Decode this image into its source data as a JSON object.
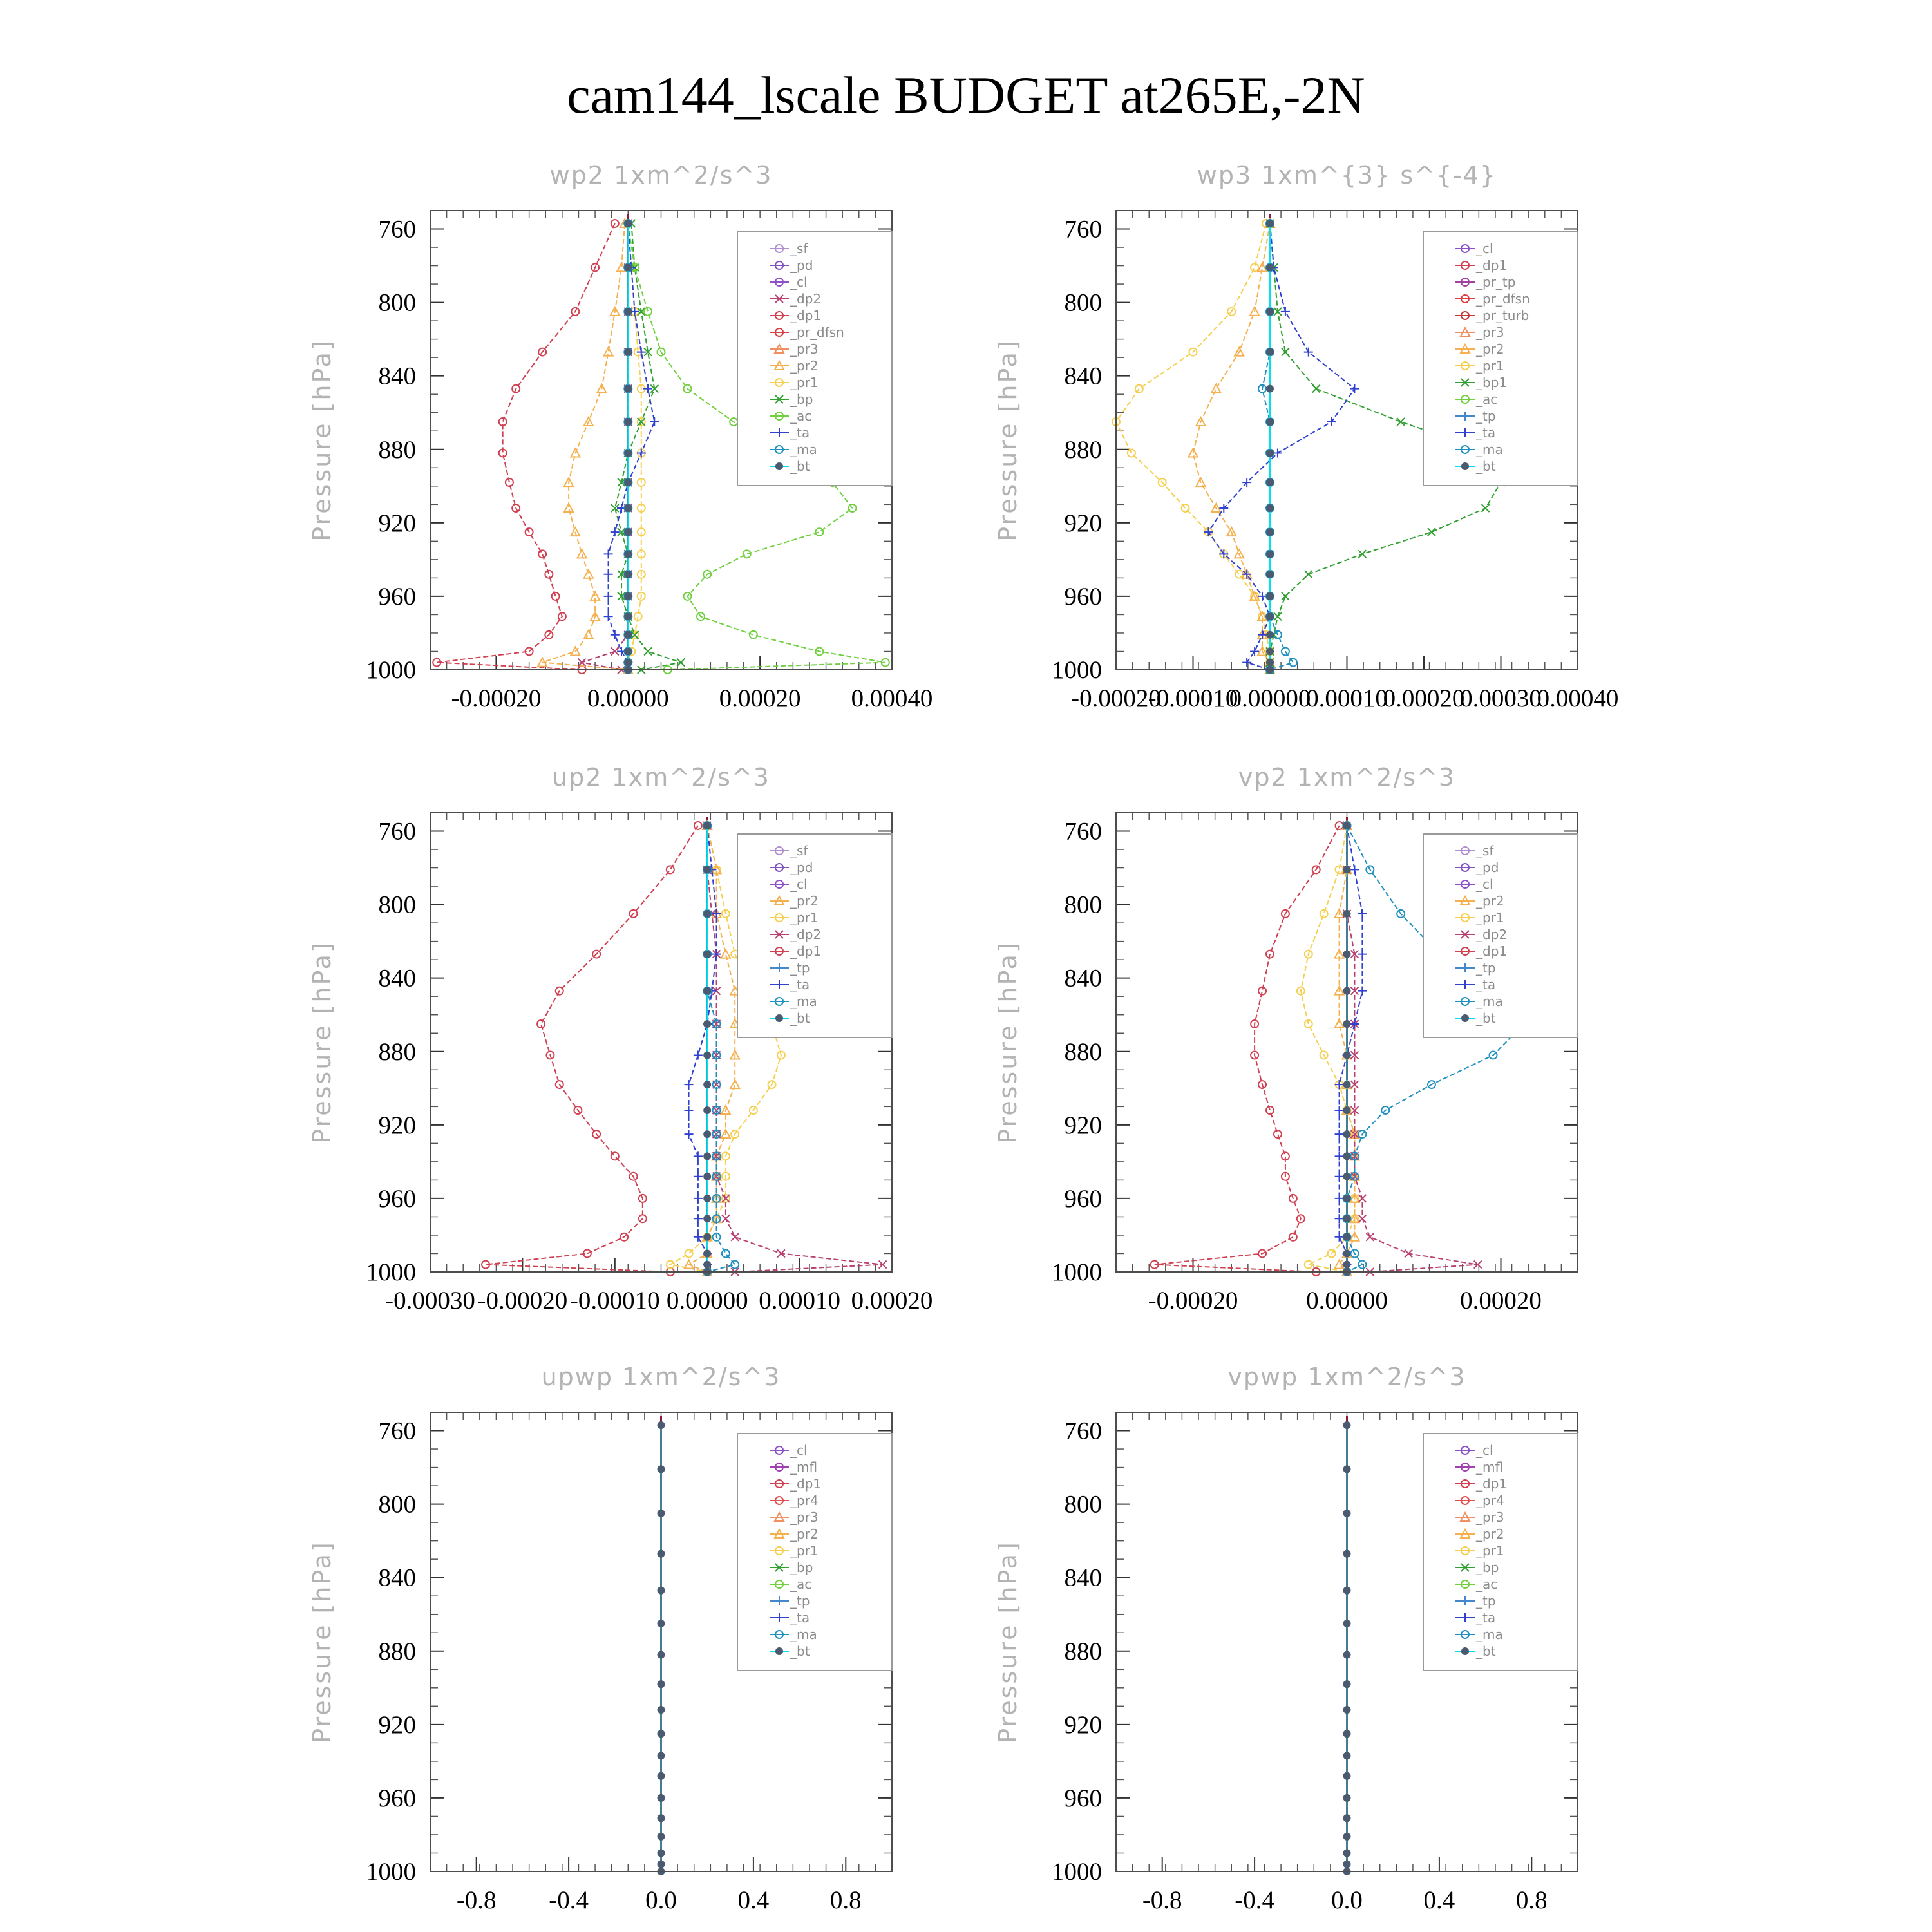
{
  "title": "cam144_lscale  BUDGET at265E,-2N",
  "colors": {
    "_sf": "#b08fd0",
    "_pd": "#8050c0",
    "_cl": "#8c50c8",
    "_mfl": "#a040b0",
    "_dp2": "#b84070",
    "_dp1": "#d04050",
    "_pr_tp": "#a040a0",
    "_pr_dfsn": "#d84040",
    "_pr_turb": "#c03838",
    "_pr4": "#e05050",
    "_pr3": "#f09060",
    "_pr2": "#f5b050",
    "_pr1": "#f5d050",
    "_bp": "#30a030",
    "_bp1": "#30a030",
    "_ac": "#70d040",
    "_tp": "#4488cc",
    "_ta": "#3040d0",
    "_ma": "#2090c0",
    "_bt": "#00e0f0"
  },
  "chart_data": [
    {
      "type": "line",
      "title": "wp2  1xm^2/s^3",
      "ylabel": "Pressure [hPa]",
      "ylim": [
        1000,
        750
      ],
      "xlim": [
        -0.0003,
        0.0004
      ],
      "yticks": [
        "760",
        "800",
        "840",
        "880",
        "920",
        "960",
        "1000"
      ],
      "xticks": [
        "-0.00020",
        "0.00000",
        "0.00020",
        "0.00040"
      ],
      "legend": [
        "_sf",
        "_pd",
        "_cl",
        "_dp2",
        "_dp1",
        "_pr_dfsn",
        "_pr3",
        "_pr2",
        "_pr1",
        "_bp",
        "_ac",
        "_ta",
        "_ma",
        "_bt"
      ],
      "y": [
        757,
        781,
        805,
        827,
        847,
        865,
        882,
        898,
        912,
        925,
        937,
        948,
        960,
        971,
        981,
        990,
        996,
        1000
      ],
      "series": [
        {
          "name": "_dp1",
          "values": [
            -2e-05,
            -5e-05,
            -8e-05,
            -0.00013,
            -0.00017,
            -0.00019,
            -0.00019,
            -0.00018,
            -0.00017,
            -0.00015,
            -0.00013,
            -0.00012,
            -0.00011,
            -0.0001,
            -0.00012,
            -0.00015,
            -0.00029,
            -7e-05
          ]
        },
        {
          "name": "_dp2",
          "values": [
            0,
            0,
            0,
            0,
            0,
            0,
            0,
            0,
            0,
            0,
            0,
            0,
            0,
            0,
            0,
            -2e-05,
            -7e-05,
            -1e-05
          ]
        },
        {
          "name": "_pr2",
          "values": [
            -5e-06,
            -1e-05,
            -2e-05,
            -3e-05,
            -4e-05,
            -6e-05,
            -8e-05,
            -9e-05,
            -9e-05,
            -8e-05,
            -7e-05,
            -6e-05,
            -5e-05,
            -5e-05,
            -6e-05,
            -8e-05,
            -0.00013,
            0
          ]
        },
        {
          "name": "_pr1",
          "values": [
            0,
            5e-06,
            1e-05,
            1.5e-05,
            2e-05,
            2e-05,
            2e-05,
            2e-05,
            2e-05,
            2e-05,
            2e-05,
            2e-05,
            2e-05,
            1.5e-05,
            1e-05,
            5e-06,
            0,
            0
          ]
        },
        {
          "name": "_bp",
          "values": [
            5e-06,
            1e-05,
            2e-05,
            3e-05,
            4e-05,
            2e-05,
            0,
            -1e-05,
            -2e-05,
            -1e-05,
            0,
            -1e-05,
            -1e-05,
            0,
            1e-05,
            3e-05,
            8e-05,
            2e-05
          ]
        },
        {
          "name": "_ac",
          "values": [
            0,
            1e-05,
            3e-05,
            5e-05,
            9e-05,
            0.00016,
            0.00024,
            0.00031,
            0.00034,
            0.00029,
            0.00018,
            0.00012,
            9e-05,
            0.00011,
            0.00019,
            0.00029,
            0.00039,
            6e-05
          ]
        },
        {
          "name": "_ta",
          "values": [
            0,
            5e-06,
            1e-05,
            2e-05,
            3e-05,
            4e-05,
            2e-05,
            0,
            -1e-05,
            -2e-05,
            -3e-05,
            -3e-05,
            -3e-05,
            -3e-05,
            -2e-05,
            -1e-05,
            0,
            0
          ]
        },
        {
          "name": "_ma",
          "values": [
            0,
            0,
            0,
            0,
            0,
            0,
            0,
            0,
            0,
            0,
            0,
            0,
            0,
            0,
            0,
            0,
            0,
            0
          ]
        },
        {
          "name": "_bt",
          "values": [
            0,
            0,
            0,
            0,
            0,
            0,
            0,
            0,
            0,
            0,
            0,
            0,
            0,
            0,
            0,
            0,
            0,
            0
          ]
        }
      ]
    },
    {
      "type": "line",
      "title": "wp3  1xm^{3} s^{-4}",
      "ylabel": "Pressure [hPa]",
      "ylim": [
        1000,
        750
      ],
      "xlim": [
        -0.0002,
        0.0004
      ],
      "yticks": [
        "760",
        "800",
        "840",
        "880",
        "920",
        "960",
        "1000"
      ],
      "xticks": [
        "-0.00020",
        "-0.00010",
        "0.00000",
        "0.00010",
        "0.00020",
        "0.00030",
        "0.00040"
      ],
      "legend": [
        "_cl",
        "_dp1",
        "_pr_tp",
        "_pr_dfsn",
        "_pr_turb",
        "_pr3",
        "_pr2",
        "_pr1",
        "_bp1",
        "_ac",
        "_tp",
        "_ta",
        "_ma",
        "_bt"
      ],
      "y": [
        757,
        781,
        805,
        827,
        847,
        865,
        882,
        898,
        912,
        925,
        937,
        948,
        960,
        971,
        981,
        990,
        996,
        1000
      ],
      "series": [
        {
          "name": "_pr1",
          "values": [
            -5e-06,
            -2e-05,
            -5e-05,
            -0.0001,
            -0.00017,
            -0.0002,
            -0.00018,
            -0.00014,
            -0.00011,
            -8e-05,
            -6e-05,
            -4e-05,
            -2e-05,
            -1e-05,
            -5e-06,
            0,
            0,
            0
          ]
        },
        {
          "name": "_pr2",
          "values": [
            0,
            -1e-05,
            -2e-05,
            -4e-05,
            -7e-05,
            -9e-05,
            -0.0001,
            -9e-05,
            -7e-05,
            -5e-05,
            -4e-05,
            -3e-05,
            -2e-05,
            -1e-05,
            -1e-05,
            -1e-05,
            0,
            0
          ]
        },
        {
          "name": "_bp1",
          "values": [
            0,
            5e-06,
            1e-05,
            2e-05,
            6e-05,
            0.00017,
            0.00029,
            0.0003,
            0.00028,
            0.00021,
            0.00012,
            5e-05,
            2e-05,
            1e-05,
            5e-06,
            0,
            0,
            0
          ]
        },
        {
          "name": "_ta",
          "values": [
            0,
            5e-06,
            2e-05,
            5e-05,
            0.00011,
            8e-05,
            1e-05,
            -3e-05,
            -6e-05,
            -8e-05,
            -6e-05,
            -3e-05,
            -1e-05,
            0,
            -1e-05,
            -2e-05,
            -3e-05,
            0
          ]
        },
        {
          "name": "_ma",
          "values": [
            0,
            0,
            0,
            0,
            -1e-05,
            0,
            0,
            0,
            0,
            0,
            0,
            0,
            0,
            0,
            1e-05,
            2e-05,
            3e-05,
            0
          ]
        },
        {
          "name": "_bt",
          "values": [
            0,
            0,
            0,
            0,
            0,
            0,
            0,
            0,
            0,
            0,
            0,
            0,
            0,
            0,
            0,
            0,
            0,
            0
          ]
        }
      ]
    },
    {
      "type": "line",
      "title": "up2  1xm^2/s^3",
      "ylabel": "Pressure [hPa]",
      "ylim": [
        1000,
        750
      ],
      "xlim": [
        -0.0003,
        0.0002
      ],
      "yticks": [
        "760",
        "800",
        "840",
        "880",
        "920",
        "960",
        "1000"
      ],
      "xticks": [
        "-0.00030",
        "-0.00020",
        "-0.00010",
        "0.00000",
        "0.00010",
        "0.00020"
      ],
      "legend": [
        "_sf",
        "_pd",
        "_cl",
        "_pr2",
        "_pr1",
        "_dp2",
        "_dp1",
        "_tp",
        "_ta",
        "_ma",
        "_bt"
      ],
      "y": [
        757,
        781,
        805,
        827,
        847,
        865,
        882,
        898,
        912,
        925,
        937,
        948,
        960,
        971,
        981,
        990,
        996,
        1000
      ],
      "series": [
        {
          "name": "_dp1",
          "values": [
            -1e-05,
            -4e-05,
            -8e-05,
            -0.00012,
            -0.00016,
            -0.00018,
            -0.00017,
            -0.00016,
            -0.00014,
            -0.00012,
            -0.0001,
            -8e-05,
            -7e-05,
            -7e-05,
            -9e-05,
            -0.00013,
            -0.00024,
            -4e-05
          ]
        },
        {
          "name": "_pr1",
          "values": [
            0,
            1e-05,
            2e-05,
            3e-05,
            5e-05,
            7e-05,
            8e-05,
            7e-05,
            5e-05,
            3e-05,
            2e-05,
            2e-05,
            2e-05,
            1e-05,
            0,
            -2e-05,
            -4e-05,
            0
          ]
        },
        {
          "name": "_pr2",
          "values": [
            0,
            1e-05,
            1e-05,
            2e-05,
            3e-05,
            3e-05,
            3e-05,
            3e-05,
            2e-05,
            2e-05,
            1e-05,
            1e-05,
            1e-05,
            1e-05,
            0,
            0,
            -2e-05,
            0
          ]
        },
        {
          "name": "_dp2",
          "values": [
            0,
            0,
            5e-06,
            1e-05,
            1e-05,
            1e-05,
            1e-05,
            1e-05,
            1e-05,
            1e-05,
            1e-05,
            1e-05,
            2e-05,
            2e-05,
            3e-05,
            8e-05,
            0.00019,
            3e-05
          ]
        },
        {
          "name": "_ta",
          "values": [
            0,
            5e-06,
            1e-05,
            1e-05,
            5e-06,
            0,
            -1e-05,
            -2e-05,
            -2e-05,
            -2e-05,
            -1e-05,
            -1e-05,
            -1e-05,
            -1e-05,
            -1e-05,
            0,
            0,
            0
          ]
        },
        {
          "name": "_ma",
          "values": [
            0,
            0,
            0,
            0,
            0,
            1e-05,
            1e-05,
            1e-05,
            1e-05,
            1e-05,
            1e-05,
            1e-05,
            1e-05,
            1e-05,
            1e-05,
            2e-05,
            3e-05,
            0
          ]
        },
        {
          "name": "_bt",
          "values": [
            0,
            0,
            0,
            0,
            0,
            0,
            0,
            0,
            0,
            0,
            0,
            0,
            0,
            0,
            0,
            0,
            0,
            0
          ]
        }
      ]
    },
    {
      "type": "line",
      "title": "vp2  1xm^2/s^3",
      "ylabel": "Pressure [hPa]",
      "ylim": [
        1000,
        750
      ],
      "xlim": [
        -0.0003,
        0.0003
      ],
      "yticks": [
        "760",
        "800",
        "840",
        "880",
        "920",
        "960",
        "1000"
      ],
      "xticks": [
        "-0.00020",
        "0.00000",
        "0.00020"
      ],
      "legend": [
        "_sf",
        "_pd",
        "_cl",
        "_pr2",
        "_pr1",
        "_dp2",
        "_dp1",
        "_tp",
        "_ta",
        "_ma",
        "_bt"
      ],
      "y": [
        757,
        781,
        805,
        827,
        847,
        865,
        882,
        898,
        912,
        925,
        937,
        948,
        960,
        971,
        981,
        990,
        996,
        1000
      ],
      "series": [
        {
          "name": "_dp1",
          "values": [
            -1e-05,
            -4e-05,
            -8e-05,
            -0.0001,
            -0.00011,
            -0.00012,
            -0.00012,
            -0.00011,
            -0.0001,
            -9e-05,
            -8e-05,
            -8e-05,
            -7e-05,
            -6e-05,
            -7e-05,
            -0.00011,
            -0.00025,
            -4e-05
          ]
        },
        {
          "name": "_pr1",
          "values": [
            0,
            -1e-05,
            -3e-05,
            -5e-05,
            -6e-05,
            -5e-05,
            -3e-05,
            -1e-05,
            0,
            1e-05,
            1e-05,
            1e-05,
            1e-05,
            1e-05,
            0,
            -2e-05,
            -5e-05,
            0
          ]
        },
        {
          "name": "_pr2",
          "values": [
            0,
            0,
            -1e-05,
            -1e-05,
            -1e-05,
            -1e-05,
            0,
            0,
            0,
            1e-05,
            1e-05,
            1e-05,
            1e-05,
            1e-05,
            1e-05,
            0,
            -1e-05,
            0
          ]
        },
        {
          "name": "_dp2",
          "values": [
            0,
            0,
            0,
            1e-05,
            1e-05,
            1e-05,
            1e-05,
            1e-05,
            1e-05,
            1e-05,
            1e-05,
            1e-05,
            2e-05,
            2e-05,
            3e-05,
            8e-05,
            0.00017,
            3e-05
          ]
        },
        {
          "name": "_ta",
          "values": [
            0,
            1e-05,
            2e-05,
            2e-05,
            2e-05,
            1e-05,
            0,
            -1e-05,
            -1e-05,
            -1e-05,
            -1e-05,
            -1e-05,
            -1e-05,
            -1e-05,
            -1e-05,
            0,
            0,
            0
          ]
        },
        {
          "name": "_ma",
          "values": [
            0,
            3e-05,
            7e-05,
            0.00012,
            0.00018,
            0.00023,
            0.00019,
            0.00011,
            5e-05,
            2e-05,
            1e-05,
            1e-05,
            0,
            0,
            0,
            1e-05,
            2e-05,
            0
          ]
        },
        {
          "name": "_bt",
          "values": [
            0,
            0,
            0,
            0,
            0,
            0,
            0,
            0,
            0,
            0,
            0,
            0,
            0,
            0,
            0,
            0,
            0,
            0
          ]
        }
      ]
    },
    {
      "type": "line",
      "title": "upwp  1xm^2/s^3",
      "ylabel": "Pressure [hPa]",
      "ylim": [
        1000,
        750
      ],
      "xlim": [
        -1,
        1
      ],
      "yticks": [
        "760",
        "800",
        "840",
        "880",
        "920",
        "960",
        "1000"
      ],
      "xticks": [
        "-0.8",
        "-0.4",
        "0.0",
        "0.4",
        "0.8"
      ],
      "legend": [
        "_cl",
        "_mfl",
        "_dp1",
        "_pr4",
        "_pr3",
        "_pr2",
        "_pr1",
        "_bp",
        "_ac",
        "_tp",
        "_ta",
        "_ma",
        "_bt"
      ],
      "y": [
        757,
        781,
        805,
        827,
        847,
        865,
        882,
        898,
        912,
        925,
        937,
        948,
        960,
        971,
        981,
        990,
        996,
        1000
      ],
      "series": [
        {
          "name": "_bt",
          "values": [
            0,
            0,
            0,
            0,
            0,
            0,
            0,
            0,
            0,
            0,
            0,
            0,
            0,
            0,
            0,
            0,
            0,
            0
          ]
        }
      ]
    },
    {
      "type": "line",
      "title": "vpwp  1xm^2/s^3",
      "ylabel": "Pressure [hPa]",
      "ylim": [
        1000,
        750
      ],
      "xlim": [
        -1,
        1
      ],
      "yticks": [
        "760",
        "800",
        "840",
        "880",
        "920",
        "960",
        "1000"
      ],
      "xticks": [
        "-0.8",
        "-0.4",
        "0.0",
        "0.4",
        "0.8"
      ],
      "legend": [
        "_cl",
        "_mfl",
        "_dp1",
        "_pr4",
        "_pr3",
        "_pr2",
        "_pr1",
        "_bp",
        "_ac",
        "_tp",
        "_ta",
        "_ma",
        "_bt"
      ],
      "y": [
        757,
        781,
        805,
        827,
        847,
        865,
        882,
        898,
        912,
        925,
        937,
        948,
        960,
        971,
        981,
        990,
        996,
        1000
      ],
      "series": [
        {
          "name": "_bt",
          "values": [
            0,
            0,
            0,
            0,
            0,
            0,
            0,
            0,
            0,
            0,
            0,
            0,
            0,
            0,
            0,
            0,
            0,
            0
          ]
        }
      ]
    }
  ]
}
